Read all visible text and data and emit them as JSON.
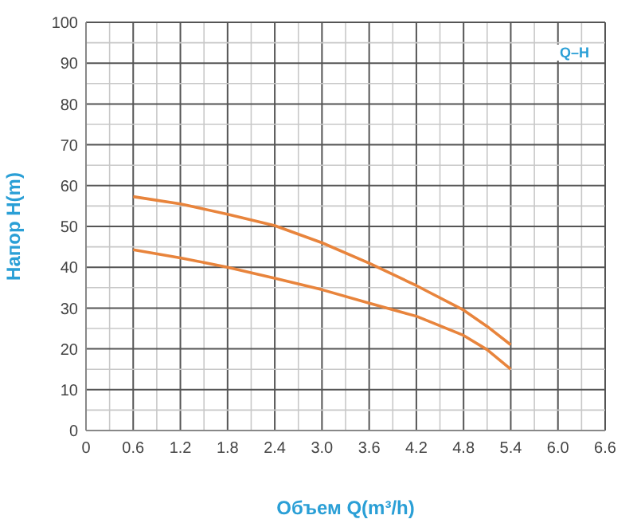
{
  "chart_data": {
    "type": "line",
    "xlabel": "Объем Q(m³/h)",
    "ylabel": "Напор H(m)",
    "annotations": [
      "Q–H"
    ],
    "x": [
      0.6,
      1.2,
      1.8,
      2.4,
      3.0,
      3.6,
      4.2,
      4.8,
      5.1,
      5.4
    ],
    "series": [
      {
        "color": "#e8843c",
        "values": [
          57.3,
          55.5,
          53,
          50.2,
          46,
          41,
          35.5,
          29.5,
          25.5,
          21
        ]
      },
      {
        "color": "#e8843c",
        "values": [
          44.3,
          42.3,
          40,
          37.3,
          34.5,
          31.2,
          28,
          23.3,
          19.8,
          15
        ]
      }
    ],
    "xlim": [
      0,
      6.6
    ],
    "xticks": [
      0,
      {
        "value": 0.3,
        "label": null
      },
      0.6,
      {
        "value": 0.9,
        "label": null
      },
      1.2,
      {
        "value": 1.5,
        "label": null
      },
      1.8,
      {
        "value": 2.1,
        "label": null
      },
      2.4,
      {
        "value": 2.7,
        "label": null
      },
      {
        "value": 3,
        "label": "3.0"
      },
      {
        "value": 3.3,
        "label": null
      },
      3.6,
      {
        "value": 3.9,
        "label": null
      },
      4.2,
      {
        "value": 4.5,
        "label": null
      },
      4.8,
      {
        "value": 5.1,
        "label": null
      },
      5.4,
      {
        "value": 5.7,
        "label": null
      },
      {
        "value": 6,
        "label": "6.0"
      },
      {
        "value": 6.3,
        "label": null
      },
      6.6
    ],
    "ylim": [
      0,
      100
    ],
    "yticks": [
      0,
      {
        "value": 5,
        "label": null
      },
      10,
      {
        "value": 15,
        "label": null
      },
      20,
      {
        "value": 25,
        "label": null
      },
      30,
      {
        "value": 35,
        "label": null
      },
      40,
      {
        "value": 45,
        "label": null
      },
      50,
      {
        "value": 55,
        "label": null
      },
      60,
      {
        "value": 65,
        "label": null
      },
      70,
      {
        "value": 75,
        "label": null
      },
      80,
      {
        "value": 85,
        "label": null
      },
      90,
      {
        "value": 95,
        "label": null
      },
      100
    ],
    "grid": true,
    "marker": "none",
    "line_style": "solid"
  }
}
